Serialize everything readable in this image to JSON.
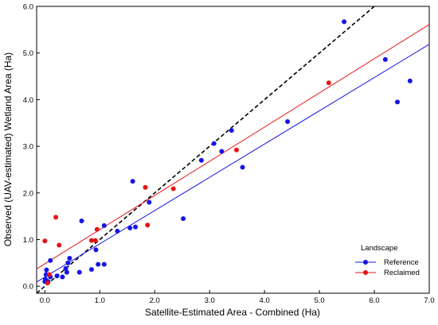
{
  "chart_data": {
    "type": "scatter",
    "title": "",
    "xlabel": "Satellite-Estimated Area - Combined (Ha)",
    "ylabel": "Observed (UAV-estimated) Wetland Area (Ha)",
    "xlim": [
      -0.15,
      7.0
    ],
    "ylim": [
      -0.15,
      6.0
    ],
    "xticks": [
      "0.0",
      "1.0",
      "2.0",
      "3.0",
      "4.0",
      "5.0",
      "6.0",
      "7.0"
    ],
    "xtick_values": [
      0,
      1,
      2,
      3,
      4,
      5,
      6,
      7
    ],
    "yticks": [
      "0.0",
      "1.0",
      "2.0",
      "3.0",
      "4.0",
      "5.0",
      "6.0"
    ],
    "ytick_values": [
      0,
      1,
      2,
      3,
      4,
      5,
      6
    ],
    "grid": false,
    "legend": {
      "title": "Landscape",
      "placement": "bottom-right",
      "entries": [
        "Reference",
        "Reclaimed"
      ]
    },
    "series": [
      {
        "name": "Reference",
        "color": "#1414e6",
        "points": [
          [
            0.0,
            0.1
          ],
          [
            0.01,
            0.15
          ],
          [
            0.02,
            0.25
          ],
          [
            0.03,
            0.35
          ],
          [
            0.06,
            0.1
          ],
          [
            0.1,
            0.2
          ],
          [
            0.1,
            0.55
          ],
          [
            0.22,
            0.22
          ],
          [
            0.32,
            0.2
          ],
          [
            0.38,
            0.38
          ],
          [
            0.4,
            0.3
          ],
          [
            0.42,
            0.5
          ],
          [
            0.45,
            0.6
          ],
          [
            0.63,
            0.3
          ],
          [
            0.67,
            1.4
          ],
          [
            0.85,
            0.36
          ],
          [
            0.93,
            0.78
          ],
          [
            0.97,
            0.47
          ],
          [
            1.08,
            0.47
          ],
          [
            1.08,
            1.3
          ],
          [
            1.32,
            1.18
          ],
          [
            1.55,
            1.25
          ],
          [
            1.6,
            2.25
          ],
          [
            1.65,
            1.27
          ],
          [
            1.9,
            1.8
          ],
          [
            2.52,
            1.45
          ],
          [
            2.85,
            2.7
          ],
          [
            3.08,
            3.06
          ],
          [
            3.22,
            2.89
          ],
          [
            3.4,
            3.34
          ],
          [
            3.6,
            2.55
          ],
          [
            4.42,
            3.53
          ],
          [
            5.45,
            5.67
          ],
          [
            6.2,
            4.86
          ],
          [
            6.42,
            3.95
          ],
          [
            6.65,
            4.4
          ]
        ],
        "fit": {
          "slope": 0.713,
          "intercept": 0.196
        }
      },
      {
        "name": "Reclaimed",
        "color": "#e61414",
        "points": [
          [
            0.0,
            0.97
          ],
          [
            0.05,
            0.07
          ],
          [
            0.08,
            0.25
          ],
          [
            0.2,
            1.48
          ],
          [
            0.26,
            0.88
          ],
          [
            0.85,
            0.98
          ],
          [
            0.92,
            0.98
          ],
          [
            0.95,
            1.22
          ],
          [
            1.83,
            2.12
          ],
          [
            1.87,
            1.31
          ],
          [
            2.34,
            2.09
          ],
          [
            3.49,
            2.92
          ],
          [
            5.17,
            4.36
          ]
        ],
        "fit": {
          "slope": 0.733,
          "intercept": 0.48
        }
      }
    ],
    "reference_line": {
      "style": "dashed",
      "color": "#000000",
      "slope": 1.0,
      "intercept": 0.0
    }
  }
}
